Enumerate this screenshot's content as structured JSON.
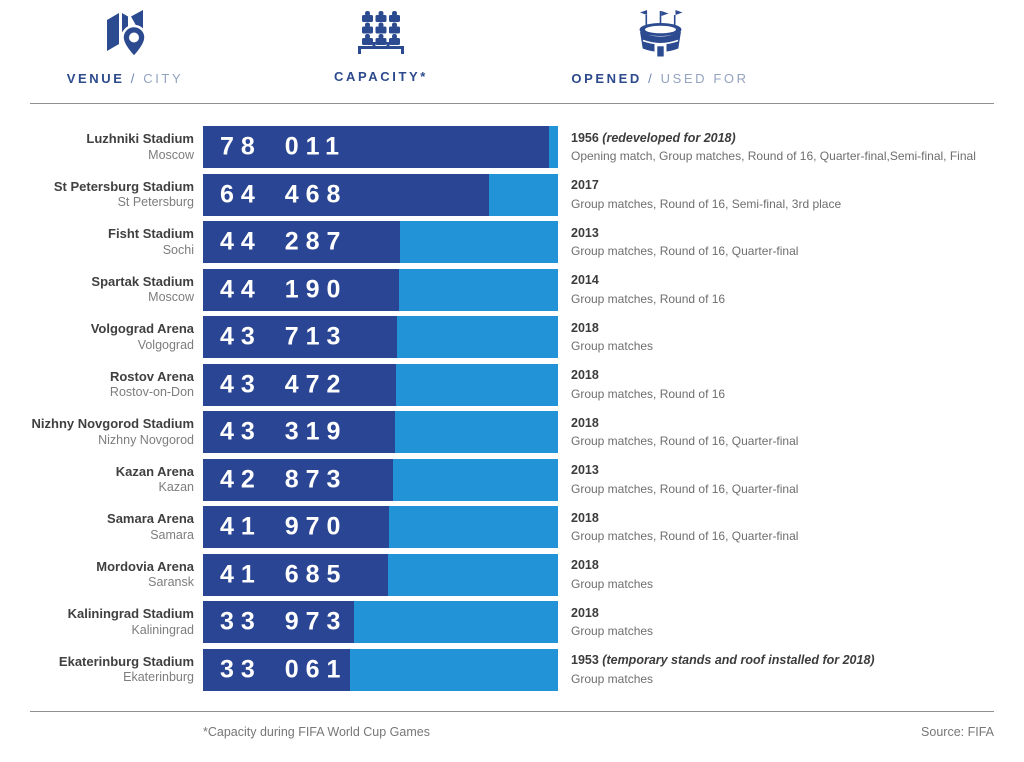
{
  "header": {
    "columns": [
      {
        "icon": "map-pin-icon",
        "label_bold": "VENUE",
        "label_sep": "/",
        "label_light": "CITY"
      },
      {
        "icon": "seats-icon",
        "label_bold": "CAPACITY*",
        "label_sep": "",
        "label_light": ""
      },
      {
        "icon": "stadium-icon",
        "label_bold": "OPENED",
        "label_sep": "/",
        "label_light": "USED FOR"
      }
    ]
  },
  "colors": {
    "bar_fill_dark": "#2a4593",
    "bar_track_light": "#2193d6",
    "icon_navy": "#2b4a8f",
    "header_navy": "#2c4a8c",
    "header_light_blue_gray": "#93a3c0"
  },
  "chart_data": {
    "type": "bar",
    "orientation": "horizontal",
    "xlim": [
      0,
      80000
    ],
    "value_label_position": "inside-left",
    "legend": "none",
    "grid": "off",
    "rows": [
      {
        "venue": "Luzhniki Stadium",
        "city": "Moscow",
        "capacity": 78011,
        "capacity_label": "78 011",
        "opened_year": "1956",
        "opened_note": "(redeveloped for 2018)",
        "used_for": "Opening match, Group matches, Round of 16, Quarter-final,Semi-final, Final"
      },
      {
        "venue": "St Petersburg Stadium",
        "city": "St Petersburg",
        "capacity": 64468,
        "capacity_label": "64 468",
        "opened_year": "2017",
        "opened_note": "",
        "used_for": "Group matches, Round of 16, Semi-final, 3rd place"
      },
      {
        "venue": "Fisht Stadium",
        "city": "Sochi",
        "capacity": 44287,
        "capacity_label": "44 287",
        "opened_year": "2013",
        "opened_note": "",
        "used_for": "Group matches, Round of 16, Quarter-final"
      },
      {
        "venue": "Spartak Stadium",
        "city": "Moscow",
        "capacity": 44190,
        "capacity_label": "44 190",
        "opened_year": "2014",
        "opened_note": "",
        "used_for": "Group matches, Round of 16"
      },
      {
        "venue": "Volgograd Arena",
        "city": "Volgograd",
        "capacity": 43713,
        "capacity_label": "43 713",
        "opened_year": "2018",
        "opened_note": "",
        "used_for": "Group matches"
      },
      {
        "venue": "Rostov Arena",
        "city": "Rostov-on-Don",
        "capacity": 43472,
        "capacity_label": "43 472",
        "opened_year": "2018",
        "opened_note": "",
        "used_for": "Group matches, Round of 16"
      },
      {
        "venue": "Nizhny Novgorod Stadium",
        "city": "Nizhny Novgorod",
        "capacity": 43319,
        "capacity_label": "43 319",
        "opened_year": "2018",
        "opened_note": "",
        "used_for": "Group matches, Round of 16, Quarter-final"
      },
      {
        "venue": "Kazan Arena",
        "city": "Kazan",
        "capacity": 42873,
        "capacity_label": "42 873",
        "opened_year": "2013",
        "opened_note": "",
        "used_for": "Group matches, Round of 16, Quarter-final"
      },
      {
        "venue": "Samara Arena",
        "city": "Samara",
        "capacity": 41970,
        "capacity_label": "41 970",
        "opened_year": "2018",
        "opened_note": "",
        "used_for": "Group matches, Round of 16, Quarter-final"
      },
      {
        "venue": "Mordovia Arena",
        "city": "Saransk",
        "capacity": 41685,
        "capacity_label": "41 685",
        "opened_year": "2018",
        "opened_note": "",
        "used_for": "Group matches"
      },
      {
        "venue": "Kaliningrad Stadium",
        "city": "Kaliningrad",
        "capacity": 33973,
        "capacity_label": "33 973",
        "opened_year": "2018",
        "opened_note": "",
        "used_for": "Group matches"
      },
      {
        "venue": "Ekaterinburg Stadium",
        "city": "Ekaterinburg",
        "capacity": 33061,
        "capacity_label": "33 061",
        "opened_year": "1953",
        "opened_note": "(temporary stands and roof installed for 2018)",
        "used_for": "Group matches"
      }
    ]
  },
  "footer": {
    "note": "*Capacity during FIFA World Cup Games",
    "source": "Source: FIFA"
  }
}
